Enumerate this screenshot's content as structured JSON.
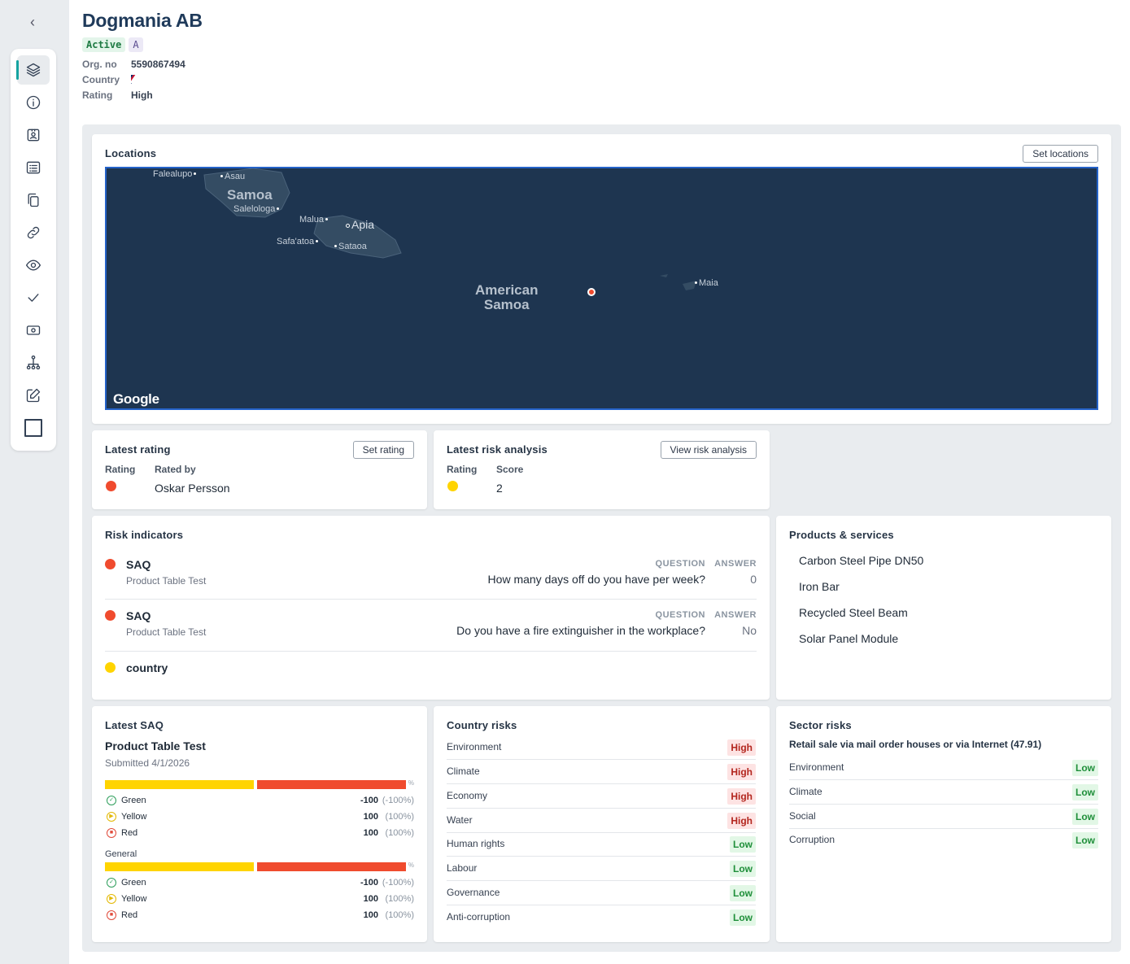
{
  "company": {
    "name": "Dogmania AB",
    "status_badge": "Active",
    "grade_badge": "A",
    "org_no_label": "Org. no",
    "org_no": "5590867494",
    "country_label": "Country",
    "rating_label": "Rating",
    "rating": "High"
  },
  "locations": {
    "title": "Locations",
    "set_button": "Set locations",
    "map_labels": {
      "falealupo": "Falealupo",
      "asau": "Asau",
      "samoa": "Samoa",
      "salelologa": "Salelologa",
      "malua": "Malua",
      "apia": "Apia",
      "safatoa": "Safa'atoa",
      "sataoa": "Sataoa",
      "american_samoa_1": "American",
      "american_samoa_2": "Samoa",
      "maia": "Maia",
      "google": "Google"
    }
  },
  "latest_rating": {
    "title": "Latest rating",
    "button": "Set rating",
    "rating_label": "Rating",
    "rated_by_label": "Rated by",
    "rated_by": "Oskar Persson",
    "color": "#f04b2e"
  },
  "latest_risk_analysis": {
    "title": "Latest risk analysis",
    "button": "View risk analysis",
    "rating_label": "Rating",
    "score_label": "Score",
    "score": "2",
    "color": "#ffd400"
  },
  "risk_indicators": {
    "title": "Risk indicators",
    "question_header": "QUESTION",
    "answer_header": "ANSWER",
    "items": [
      {
        "source": "SAQ",
        "sub": "Product Table Test",
        "question": "How many days off do you have per week?",
        "answer": "0",
        "color": "#f04b2e"
      },
      {
        "source": "SAQ",
        "sub": "Product Table Test",
        "question": "Do you have a fire extinguisher in the workplace?",
        "answer": "No",
        "color": "#f04b2e"
      },
      {
        "source": "country",
        "color": "#ffd400"
      }
    ]
  },
  "products": {
    "title": "Products & services",
    "items": [
      "Carbon Steel Pipe DN50",
      "Iron Bar",
      "Recycled Steel Beam",
      "Solar Panel Module"
    ]
  },
  "latest_saq": {
    "title": "Latest SAQ",
    "name": "Product Table Test",
    "submitted": "Submitted 4/1/2026",
    "percent_sign": "%",
    "general_label": "General",
    "sections": [
      {
        "rows": [
          {
            "name": "Green",
            "value": "-100",
            "pct": "(-100%)"
          },
          {
            "name": "Yellow",
            "value": "100",
            "pct": "(100%)"
          },
          {
            "name": "Red",
            "value": "100",
            "pct": "(100%)"
          }
        ]
      },
      {
        "rows": [
          {
            "name": "Green",
            "value": "-100",
            "pct": "(-100%)"
          },
          {
            "name": "Yellow",
            "value": "100",
            "pct": "(100%)"
          },
          {
            "name": "Red",
            "value": "100",
            "pct": "(100%)"
          }
        ]
      }
    ]
  },
  "country_risks": {
    "title": "Country risks",
    "items": [
      {
        "name": "Environment",
        "level": "High"
      },
      {
        "name": "Climate",
        "level": "High"
      },
      {
        "name": "Economy",
        "level": "High"
      },
      {
        "name": "Water",
        "level": "High"
      },
      {
        "name": "Human rights",
        "level": "Low"
      },
      {
        "name": "Labour",
        "level": "Low"
      },
      {
        "name": "Governance",
        "level": "Low"
      },
      {
        "name": "Anti-corruption",
        "level": "Low"
      }
    ]
  },
  "sector_risks": {
    "title": "Sector risks",
    "sector": "Retail sale via mail order houses or via Internet (47.91)",
    "items": [
      {
        "name": "Environment",
        "level": "Low"
      },
      {
        "name": "Climate",
        "level": "Low"
      },
      {
        "name": "Social",
        "level": "Low"
      },
      {
        "name": "Corruption",
        "level": "Low"
      }
    ]
  }
}
